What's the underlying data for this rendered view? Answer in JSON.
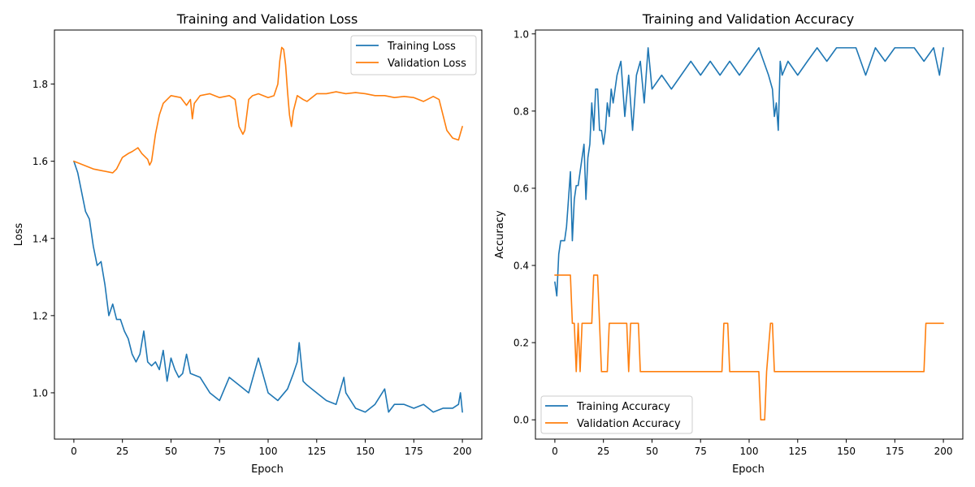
{
  "chart_data": [
    {
      "type": "line",
      "title": "Training and Validation Loss",
      "xlabel": "Epoch",
      "ylabel": "Loss",
      "xlim": [
        -10,
        210
      ],
      "ylim": [
        0.88,
        1.94
      ],
      "xticks": [
        0,
        25,
        50,
        75,
        100,
        125,
        150,
        175,
        200
      ],
      "yticks": [
        1.0,
        1.2,
        1.4,
        1.6,
        1.8
      ],
      "ytick_labels": [
        "1.0",
        "1.2",
        "1.4",
        "1.6",
        "1.8"
      ],
      "grid": false,
      "legend_location": "upper right",
      "series": [
        {
          "name": "Training Loss",
          "color": "#1f77b4",
          "x": [
            0,
            2,
            4,
            6,
            8,
            10,
            12,
            14,
            16,
            18,
            20,
            22,
            24,
            26,
            28,
            30,
            32,
            34,
            36,
            38,
            40,
            42,
            44,
            46,
            48,
            50,
            52,
            54,
            56,
            58,
            60,
            65,
            70,
            75,
            80,
            85,
            90,
            95,
            100,
            105,
            110,
            113,
            115,
            116,
            118,
            120,
            125,
            130,
            135,
            139,
            140,
            145,
            150,
            155,
            160,
            162,
            165,
            170,
            175,
            180,
            185,
            190,
            195,
            198,
            199,
            200
          ],
          "values": [
            1.6,
            1.57,
            1.52,
            1.47,
            1.45,
            1.38,
            1.33,
            1.34,
            1.28,
            1.2,
            1.23,
            1.19,
            1.19,
            1.16,
            1.14,
            1.1,
            1.08,
            1.1,
            1.16,
            1.08,
            1.07,
            1.08,
            1.06,
            1.11,
            1.03,
            1.09,
            1.06,
            1.04,
            1.05,
            1.1,
            1.05,
            1.04,
            1.0,
            0.98,
            1.04,
            1.02,
            1.0,
            1.09,
            1.0,
            0.98,
            1.01,
            1.05,
            1.08,
            1.13,
            1.03,
            1.02,
            1.0,
            0.98,
            0.97,
            1.04,
            1.0,
            0.96,
            0.95,
            0.97,
            1.01,
            0.95,
            0.97,
            0.97,
            0.96,
            0.97,
            0.95,
            0.96,
            0.96,
            0.97,
            1.0,
            0.95
          ]
        },
        {
          "name": "Validation Loss",
          "color": "#ff7f0e",
          "x": [
            0,
            5,
            10,
            15,
            20,
            22,
            25,
            28,
            30,
            33,
            35,
            37,
            38,
            39,
            40,
            42,
            44,
            46,
            48,
            50,
            55,
            58,
            60,
            61,
            62,
            65,
            70,
            75,
            80,
            83,
            85,
            87,
            88,
            90,
            92,
            95,
            100,
            103,
            105,
            106,
            107,
            108,
            109,
            110,
            111,
            112,
            113,
            115,
            118,
            120,
            125,
            130,
            135,
            140,
            145,
            150,
            155,
            160,
            165,
            170,
            175,
            180,
            185,
            188,
            190,
            192,
            195,
            198,
            200
          ],
          "values": [
            1.6,
            1.59,
            1.58,
            1.575,
            1.57,
            1.58,
            1.61,
            1.62,
            1.625,
            1.635,
            1.62,
            1.61,
            1.605,
            1.59,
            1.6,
            1.67,
            1.72,
            1.75,
            1.76,
            1.77,
            1.765,
            1.745,
            1.76,
            1.71,
            1.75,
            1.77,
            1.775,
            1.765,
            1.77,
            1.76,
            1.69,
            1.67,
            1.68,
            1.76,
            1.77,
            1.775,
            1.765,
            1.77,
            1.8,
            1.86,
            1.895,
            1.89,
            1.85,
            1.78,
            1.72,
            1.69,
            1.73,
            1.77,
            1.76,
            1.755,
            1.775,
            1.775,
            1.78,
            1.775,
            1.778,
            1.775,
            1.77,
            1.77,
            1.765,
            1.768,
            1.765,
            1.755,
            1.768,
            1.76,
            1.72,
            1.68,
            1.66,
            1.655,
            1.69
          ]
        }
      ]
    },
    {
      "type": "line",
      "title": "Training and Validation Accuracy",
      "xlabel": "Epoch",
      "ylabel": "Accuracy",
      "xlim": [
        -10,
        210
      ],
      "ylim": [
        -0.05,
        1.01
      ],
      "xticks": [
        0,
        25,
        50,
        75,
        100,
        125,
        150,
        175,
        200
      ],
      "yticks": [
        0.0,
        0.2,
        0.4,
        0.6,
        0.8,
        1.0
      ],
      "ytick_labels": [
        "0.0",
        "0.2",
        "0.4",
        "0.6",
        "0.8",
        "1.0"
      ],
      "grid": false,
      "legend_location": "lower left",
      "series": [
        {
          "name": "Training Accuracy",
          "color": "#1f77b4",
          "x": [
            0,
            1,
            2,
            3,
            4,
            5,
            6,
            7,
            8,
            9,
            10,
            11,
            12,
            13,
            14,
            15,
            16,
            17,
            18,
            19,
            20,
            21,
            22,
            23,
            24,
            25,
            26,
            27,
            28,
            29,
            30,
            32,
            34,
            36,
            38,
            40,
            42,
            44,
            46,
            48,
            50,
            55,
            60,
            65,
            70,
            75,
            80,
            85,
            90,
            95,
            100,
            105,
            110,
            112,
            113,
            114,
            115,
            116,
            117,
            120,
            125,
            130,
            135,
            140,
            145,
            150,
            155,
            160,
            165,
            170,
            175,
            180,
            185,
            190,
            195,
            198,
            200
          ],
          "values": [
            0.357,
            0.321,
            0.429,
            0.464,
            0.464,
            0.464,
            0.5,
            0.571,
            0.643,
            0.464,
            0.571,
            0.607,
            0.607,
            0.643,
            0.679,
            0.714,
            0.571,
            0.679,
            0.714,
            0.821,
            0.75,
            0.857,
            0.857,
            0.75,
            0.75,
            0.714,
            0.75,
            0.821,
            0.786,
            0.857,
            0.821,
            0.893,
            0.929,
            0.786,
            0.893,
            0.75,
            0.893,
            0.929,
            0.821,
            0.964,
            0.857,
            0.893,
            0.857,
            0.893,
            0.929,
            0.893,
            0.929,
            0.893,
            0.929,
            0.893,
            0.929,
            0.964,
            0.893,
            0.857,
            0.786,
            0.821,
            0.75,
            0.929,
            0.893,
            0.929,
            0.893,
            0.929,
            0.964,
            0.929,
            0.964,
            0.964,
            0.964,
            0.893,
            0.964,
            0.929,
            0.964,
            0.964,
            0.964,
            0.929,
            0.964,
            0.893,
            0.964
          ]
        },
        {
          "name": "Validation Accuracy",
          "color": "#ff7f0e",
          "x": [
            0,
            8,
            9,
            10,
            11,
            12,
            13,
            14,
            19,
            20,
            21,
            22,
            23,
            24,
            25,
            27,
            28,
            37,
            38,
            39,
            43,
            44,
            45,
            86,
            87,
            89,
            90,
            105,
            106,
            108,
            109,
            111,
            112,
            113,
            190,
            191,
            200
          ],
          "values": [
            0.375,
            0.375,
            0.25,
            0.25,
            0.125,
            0.25,
            0.125,
            0.25,
            0.25,
            0.375,
            0.375,
            0.375,
            0.25,
            0.125,
            0.125,
            0.125,
            0.25,
            0.25,
            0.125,
            0.25,
            0.25,
            0.125,
            0.125,
            0.125,
            0.25,
            0.25,
            0.125,
            0.125,
            0.0,
            0.0,
            0.125,
            0.25,
            0.25,
            0.125,
            0.125,
            0.25,
            0.25
          ]
        }
      ]
    }
  ]
}
